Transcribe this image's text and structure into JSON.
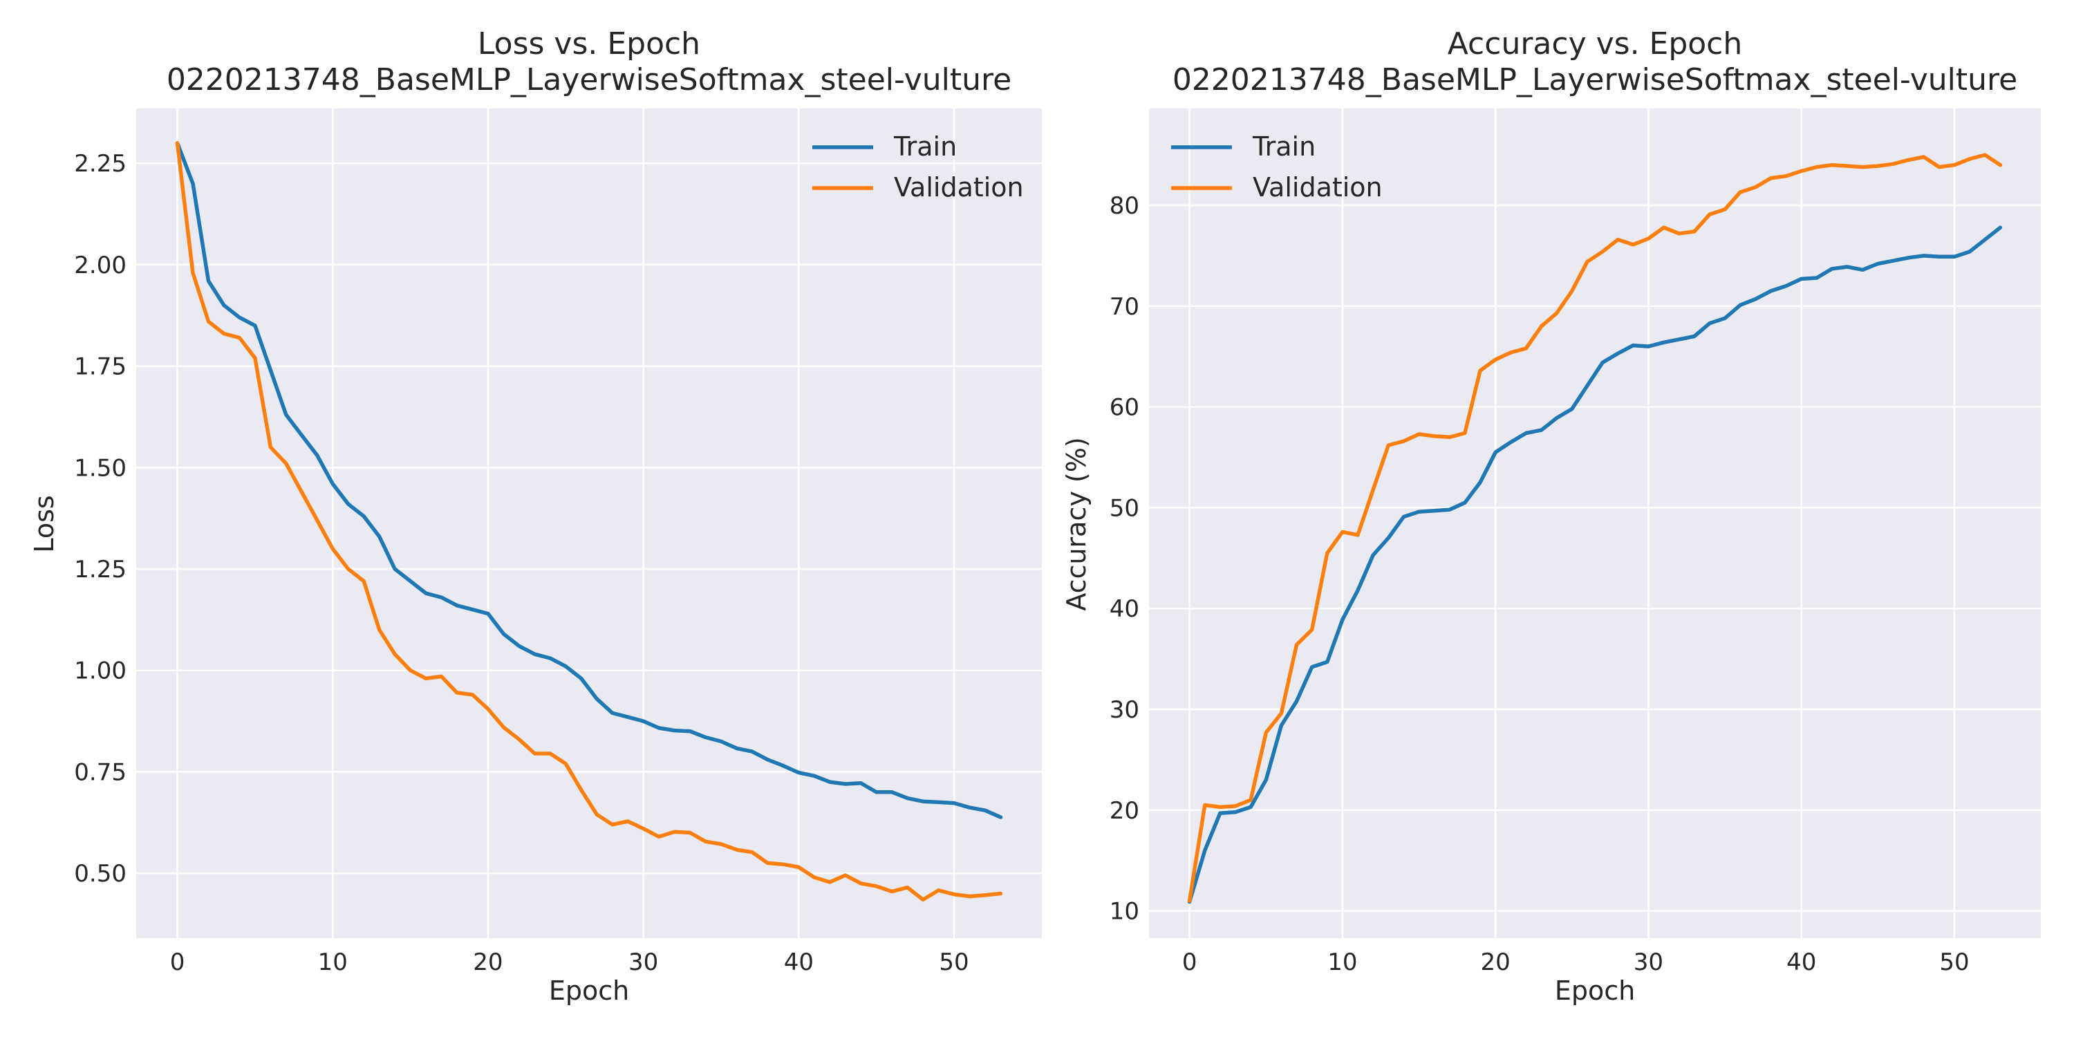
{
  "chart_data": [
    {
      "type": "line",
      "title": "Loss vs. Epoch",
      "subtitle": "0220213748_BaseMLP_LayerwiseSoftmax_steel-vulture",
      "xlabel": "Epoch",
      "ylabel": "Loss",
      "xlim": [
        -2.65,
        55.65
      ],
      "ylim": [
        0.34,
        2.385
      ],
      "xticks": [
        0,
        10,
        20,
        30,
        40,
        50
      ],
      "xtick_labels": [
        "0",
        "10",
        "20",
        "30",
        "40",
        "50"
      ],
      "yticks": [
        0.5,
        0.75,
        1.0,
        1.25,
        1.5,
        1.75,
        2.0,
        2.25
      ],
      "ytick_labels": [
        "0.50",
        "0.75",
        "1.00",
        "1.25",
        "1.50",
        "1.75",
        "2.00",
        "2.25"
      ],
      "grid": true,
      "legend_position": "top-right",
      "x": [
        0,
        1,
        2,
        3,
        4,
        5,
        6,
        7,
        8,
        9,
        10,
        11,
        12,
        13,
        14,
        15,
        16,
        17,
        18,
        19,
        20,
        21,
        22,
        23,
        24,
        25,
        26,
        27,
        28,
        29,
        30,
        31,
        32,
        33,
        34,
        35,
        36,
        37,
        38,
        39,
        40,
        41,
        42,
        43,
        44,
        45,
        46,
        47,
        48,
        49,
        50,
        51,
        52,
        53
      ],
      "series": [
        {
          "name": "Train",
          "color": "#1f77b4",
          "values": [
            2.3,
            2.2,
            1.96,
            1.9,
            1.87,
            1.85,
            1.74,
            1.63,
            1.58,
            1.53,
            1.46,
            1.41,
            1.38,
            1.33,
            1.25,
            1.22,
            1.19,
            1.18,
            1.16,
            1.15,
            1.14,
            1.09,
            1.06,
            1.04,
            1.03,
            1.01,
            0.98,
            0.93,
            0.895,
            0.885,
            0.875,
            0.858,
            0.852,
            0.85,
            0.835,
            0.825,
            0.808,
            0.8,
            0.78,
            0.765,
            0.748,
            0.74,
            0.725,
            0.72,
            0.722,
            0.7,
            0.7,
            0.685,
            0.677,
            0.675,
            0.673,
            0.662,
            0.655,
            0.638
          ]
        },
        {
          "name": "Validation",
          "color": "#ff7f0e",
          "values": [
            2.3,
            1.98,
            1.86,
            1.83,
            1.82,
            1.77,
            1.55,
            1.51,
            1.44,
            1.37,
            1.3,
            1.25,
            1.22,
            1.1,
            1.04,
            1.0,
            0.98,
            0.985,
            0.945,
            0.94,
            0.905,
            0.86,
            0.83,
            0.795,
            0.795,
            0.77,
            0.705,
            0.645,
            0.62,
            0.628,
            0.61,
            0.59,
            0.602,
            0.6,
            0.578,
            0.572,
            0.558,
            0.552,
            0.525,
            0.522,
            0.515,
            0.49,
            0.478,
            0.495,
            0.475,
            0.468,
            0.455,
            0.465,
            0.435,
            0.458,
            0.448,
            0.443,
            0.446,
            0.45
          ]
        }
      ]
    },
    {
      "type": "line",
      "title": "Accuracy vs. Epoch",
      "subtitle": "0220213748_BaseMLP_LayerwiseSoftmax_steel-vulture",
      "xlabel": "Epoch",
      "ylabel": "Accuracy (%)",
      "xlim": [
        -2.65,
        55.65
      ],
      "ylim": [
        7.3,
        89.6
      ],
      "xticks": [
        0,
        10,
        20,
        30,
        40,
        50
      ],
      "xtick_labels": [
        "0",
        "10",
        "20",
        "30",
        "40",
        "50"
      ],
      "yticks": [
        10,
        20,
        30,
        40,
        50,
        60,
        70,
        80
      ],
      "ytick_labels": [
        "10",
        "20",
        "30",
        "40",
        "50",
        "60",
        "70",
        "80"
      ],
      "grid": true,
      "legend_position": "top-left",
      "x": [
        0,
        1,
        2,
        3,
        4,
        5,
        6,
        7,
        8,
        9,
        10,
        11,
        12,
        13,
        14,
        15,
        16,
        17,
        18,
        19,
        20,
        21,
        22,
        23,
        24,
        25,
        26,
        27,
        28,
        29,
        30,
        31,
        32,
        33,
        34,
        35,
        36,
        37,
        38,
        39,
        40,
        41,
        42,
        43,
        44,
        45,
        46,
        47,
        48,
        49,
        50,
        51,
        52,
        53
      ],
      "series": [
        {
          "name": "Train",
          "color": "#1f77b4",
          "values": [
            10.9,
            16.0,
            19.7,
            19.8,
            20.3,
            23.0,
            28.4,
            30.8,
            34.2,
            34.7,
            38.9,
            41.8,
            45.3,
            47.0,
            49.1,
            49.6,
            49.7,
            49.8,
            50.5,
            52.5,
            55.5,
            56.5,
            57.4,
            57.7,
            58.9,
            59.8,
            62.1,
            64.4,
            65.3,
            66.1,
            66.0,
            66.4,
            66.7,
            67.0,
            68.3,
            68.8,
            70.1,
            70.7,
            71.5,
            72.0,
            72.7,
            72.8,
            73.7,
            73.9,
            73.6,
            74.2,
            74.5,
            74.8,
            75.0,
            74.9,
            74.9,
            75.4,
            76.6,
            77.8
          ]
        },
        {
          "name": "Validation",
          "color": "#ff7f0e",
          "values": [
            11.0,
            20.5,
            20.3,
            20.4,
            21.0,
            27.7,
            29.6,
            36.4,
            37.9,
            45.5,
            47.6,
            47.3,
            51.8,
            56.2,
            56.6,
            57.3,
            57.1,
            57.0,
            57.4,
            63.6,
            64.7,
            65.4,
            65.8,
            68.0,
            69.3,
            71.5,
            74.4,
            75.4,
            76.6,
            76.1,
            76.7,
            77.8,
            77.2,
            77.4,
            79.1,
            79.6,
            81.3,
            81.8,
            82.7,
            82.9,
            83.4,
            83.8,
            84.0,
            83.9,
            83.8,
            83.9,
            84.1,
            84.5,
            84.8,
            83.8,
            84.0,
            84.6,
            85.0,
            84.0
          ]
        }
      ]
    }
  ]
}
